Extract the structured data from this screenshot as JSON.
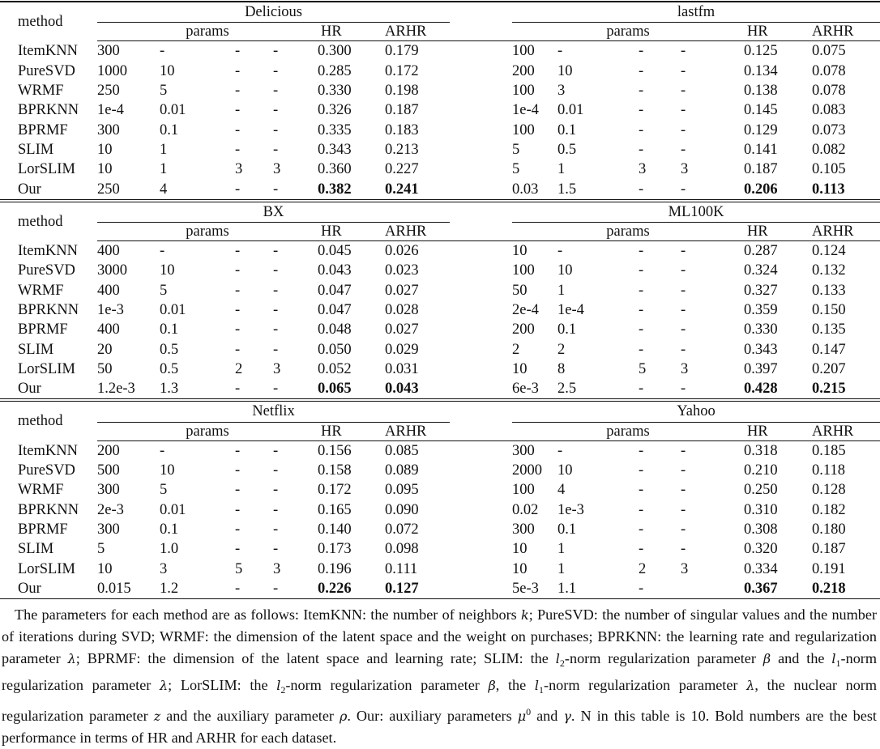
{
  "headers": {
    "method": "method",
    "params": "params",
    "hr": "HR",
    "arhr": "ARHR"
  },
  "methods": [
    "ItemKNN",
    "PureSVD",
    "WRMF",
    "BPRKNN",
    "BPRMF",
    "SLIM",
    "LorSLIM",
    "Our"
  ],
  "blocks": [
    {
      "datasets": [
        {
          "name": "Delicious",
          "rows": [
            [
              "300",
              "-",
              "-",
              "-",
              "0.300",
              "0.179"
            ],
            [
              "1000",
              "10",
              "-",
              "-",
              "0.285",
              "0.172"
            ],
            [
              "250",
              "5",
              "-",
              "-",
              "0.330",
              "0.198"
            ],
            [
              "1e-4",
              "0.01",
              "-",
              "-",
              "0.326",
              "0.187"
            ],
            [
              "300",
              "0.1",
              "-",
              "-",
              "0.335",
              "0.183"
            ],
            [
              "10",
              "1",
              "-",
              "-",
              "0.343",
              "0.213"
            ],
            [
              "10",
              "1",
              "3",
              "3",
              "0.360",
              "0.227"
            ],
            [
              "250",
              "4",
              "-",
              "-",
              "0.382",
              "0.241"
            ]
          ]
        },
        {
          "name": "lastfm",
          "rows": [
            [
              "100",
              "-",
              "-",
              "-",
              "0.125",
              "0.075"
            ],
            [
              "200",
              "10",
              "-",
              "-",
              "0.134",
              "0.078"
            ],
            [
              "100",
              "3",
              "-",
              "-",
              "0.138",
              "0.078"
            ],
            [
              "1e-4",
              "0.01",
              "-",
              "-",
              "0.145",
              "0.083"
            ],
            [
              "100",
              "0.1",
              "-",
              "-",
              "0.129",
              "0.073"
            ],
            [
              "5",
              "0.5",
              "-",
              "-",
              "0.141",
              "0.082"
            ],
            [
              "5",
              "1",
              "3",
              "3",
              "0.187",
              "0.105"
            ],
            [
              "0.03",
              "1.5",
              "-",
              "-",
              "0.206",
              "0.113"
            ]
          ]
        }
      ]
    },
    {
      "datasets": [
        {
          "name": "BX",
          "rows": [
            [
              "400",
              "-",
              "-",
              "-",
              "0.045",
              "0.026"
            ],
            [
              "3000",
              "10",
              "-",
              "-",
              "0.043",
              "0.023"
            ],
            [
              "400",
              "5",
              "-",
              "-",
              "0.047",
              "0.027"
            ],
            [
              "1e-3",
              "0.01",
              "-",
              "-",
              "0.047",
              "0.028"
            ],
            [
              "400",
              "0.1",
              "-",
              "-",
              "0.048",
              "0.027"
            ],
            [
              "20",
              "0.5",
              "-",
              "-",
              "0.050",
              "0.029"
            ],
            [
              "50",
              "0.5",
              "2",
              "3",
              "0.052",
              "0.031"
            ],
            [
              "1.2e-3",
              "1.3",
              "-",
              "-",
              "0.065",
              "0.043"
            ]
          ]
        },
        {
          "name": "ML100K",
          "rows": [
            [
              "10",
              "-",
              "-",
              "-",
              "0.287",
              "0.124"
            ],
            [
              "100",
              "10",
              "-",
              "-",
              "0.324",
              "0.132"
            ],
            [
              "50",
              "1",
              "-",
              "-",
              "0.327",
              "0.133"
            ],
            [
              "2e-4",
              "1e-4",
              "-",
              "-",
              "0.359",
              "0.150"
            ],
            [
              "200",
              "0.1",
              "-",
              "-",
              "0.330",
              "0.135"
            ],
            [
              "2",
              "2",
              "-",
              "-",
              "0.343",
              "0.147"
            ],
            [
              "10",
              "8",
              "5",
              "3",
              "0.397",
              "0.207"
            ],
            [
              "6e-3",
              "2.5",
              "-",
              "-",
              "0.428",
              "0.215"
            ]
          ]
        }
      ]
    },
    {
      "datasets": [
        {
          "name": "Netflix",
          "rows": [
            [
              "200",
              "-",
              "-",
              "-",
              "0.156",
              "0.085"
            ],
            [
              "500",
              "10",
              "-",
              "-",
              "0.158",
              "0.089"
            ],
            [
              "300",
              "5",
              "-",
              "-",
              "0.172",
              "0.095"
            ],
            [
              "2e-3",
              "0.01",
              "-",
              "-",
              "0.165",
              "0.090"
            ],
            [
              "300",
              "0.1",
              "-",
              "-",
              "0.140",
              "0.072"
            ],
            [
              "5",
              "1.0",
              "-",
              "-",
              "0.173",
              "0.098"
            ],
            [
              "10",
              "3",
              "5",
              "3",
              "0.196",
              "0.111"
            ],
            [
              "0.015",
              "1.2",
              "-",
              "-",
              "0.226",
              "0.127"
            ]
          ]
        },
        {
          "name": "Yahoo",
          "rows": [
            [
              "300",
              "-",
              "-",
              "-",
              "0.318",
              "0.185"
            ],
            [
              "2000",
              "10",
              "-",
              "-",
              "0.210",
              "0.118"
            ],
            [
              "100",
              "4",
              "-",
              "-",
              "0.250",
              "0.128"
            ],
            [
              "0.02",
              "1e-3",
              "-",
              "-",
              "0.310",
              "0.182"
            ],
            [
              "300",
              "0.1",
              "-",
              "-",
              "0.308",
              "0.180"
            ],
            [
              "10",
              "1",
              "-",
              "-",
              "0.320",
              "0.187"
            ],
            [
              "10",
              "1",
              "2",
              "3",
              "0.334",
              "0.191"
            ],
            [
              "5e-3",
              "1.1",
              "-",
              "",
              "0.367",
              "0.218"
            ]
          ]
        }
      ]
    }
  ],
  "caption": [
    {
      "t": "The parameters for each method are as follows: ItemKNN: the number of neighbors "
    },
    {
      "m": "k"
    },
    {
      "t": "; PureSVD: the number of singular values and the number of iterations during SVD; WRMF: the dimension of the latent space and the weight on purchases; BPRKNN: the learning rate and regularization parameter "
    },
    {
      "m": "λ"
    },
    {
      "t": "; BPRMF: the dimension of the latent space and learning rate; SLIM: the "
    },
    {
      "m": "l"
    },
    {
      "sub": "2"
    },
    {
      "t": "-norm regularization parameter "
    },
    {
      "m": "β"
    },
    {
      "t": " and the "
    },
    {
      "m": "l"
    },
    {
      "sub": "1"
    },
    {
      "t": "-norm regularization parameter "
    },
    {
      "m": "λ"
    },
    {
      "t": "; LorSLIM: the "
    },
    {
      "m": "l"
    },
    {
      "sub": "2"
    },
    {
      "t": "-norm regularization parameter "
    },
    {
      "m": "β"
    },
    {
      "t": ", the "
    },
    {
      "m": "l"
    },
    {
      "sub": "1"
    },
    {
      "t": "-norm regularization parameter "
    },
    {
      "m": "λ"
    },
    {
      "t": ", the nuclear norm regularization parameter "
    },
    {
      "m": "z"
    },
    {
      "t": " and the auxiliary parameter "
    },
    {
      "m": "ρ"
    },
    {
      "t": ". Our: auxiliary parameters "
    },
    {
      "m": "μ"
    },
    {
      "sup": "0"
    },
    {
      "t": " and "
    },
    {
      "m": "γ"
    },
    {
      "t": ". N in this table is 10. Bold numbers are the best performance in terms of HR and ARHR for each dataset."
    }
  ]
}
